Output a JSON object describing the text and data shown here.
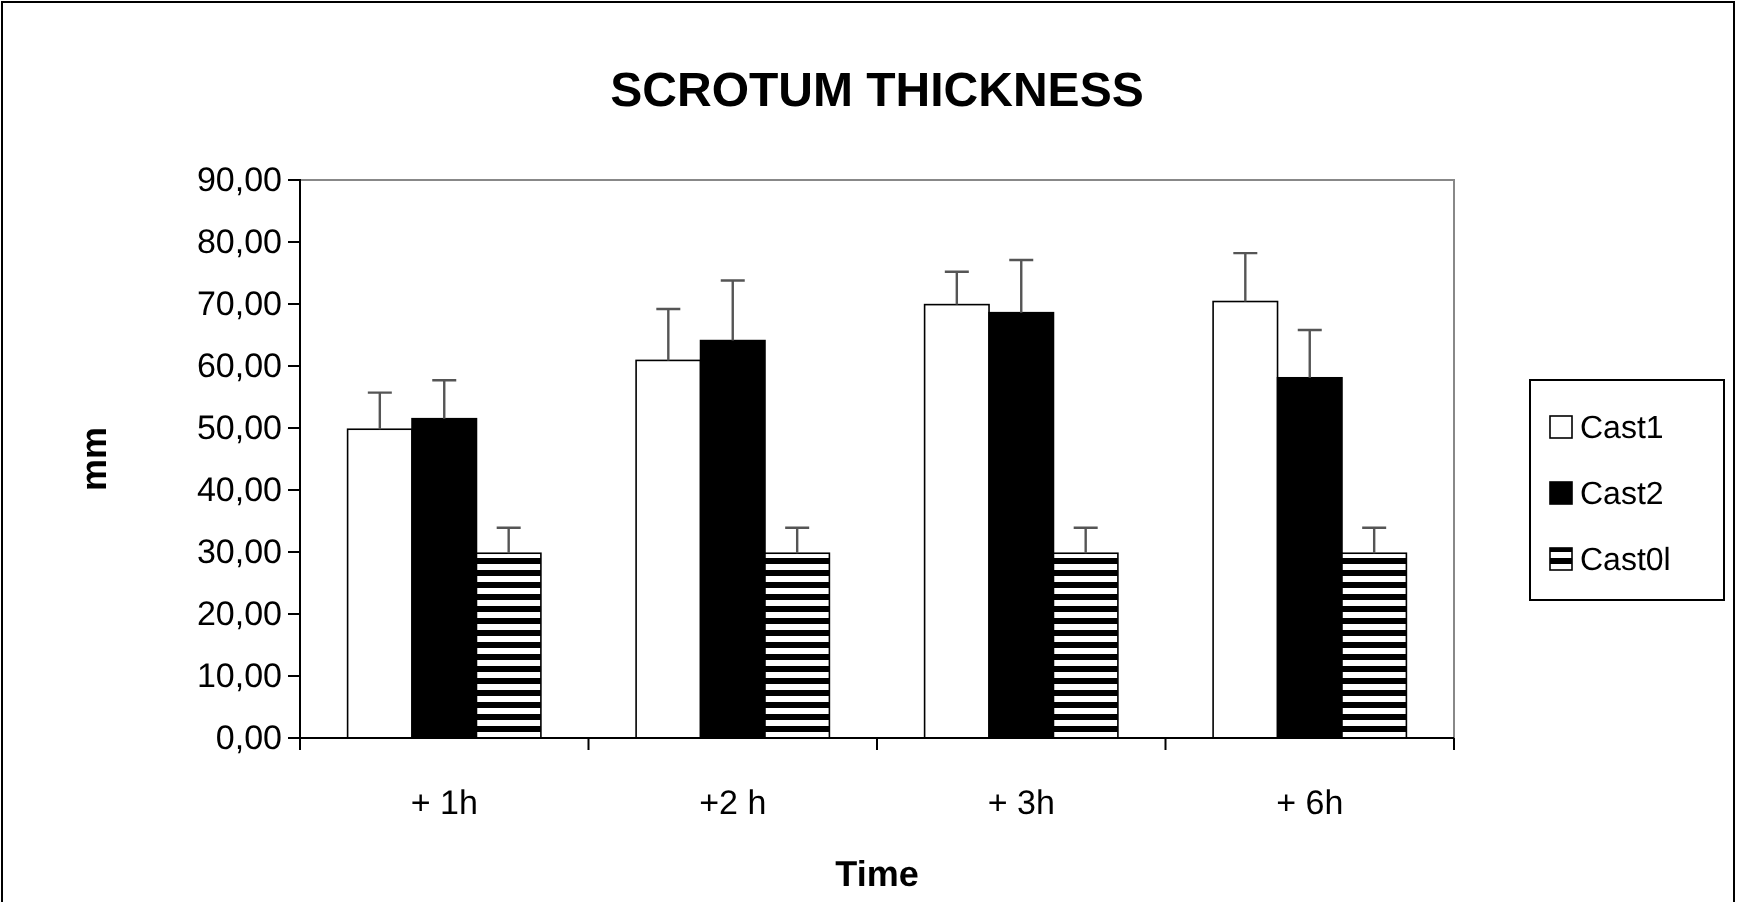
{
  "chart_data": {
    "type": "bar",
    "title": "SCROTUM THICKNESS",
    "xlabel": "Time",
    "ylabel": "mm",
    "categories": [
      "+ 1h",
      "+2 h",
      "+ 3h",
      "+ 6h"
    ],
    "series": [
      {
        "name": "Cast1",
        "color": "#ffffff",
        "values": [
          49.8,
          60.9,
          69.9,
          70.4
        ],
        "errors": [
          [
            49.8,
            55.7
          ],
          [
            60.9,
            69.2
          ],
          [
            69.9,
            75.2
          ],
          [
            70.4,
            78.2
          ]
        ]
      },
      {
        "name": "Cast2",
        "color": "#000000",
        "values": [
          51.5,
          64.1,
          68.6,
          58.1
        ],
        "errors": [
          [
            51.5,
            57.7
          ],
          [
            64.1,
            73.8
          ],
          [
            68.6,
            77.1
          ],
          [
            58.1,
            65.8
          ]
        ]
      },
      {
        "name": "Cast0l",
        "color": "#000000",
        "values": [
          29.8,
          29.8,
          29.8,
          29.8
        ],
        "errors": [
          [
            29.8,
            33.9
          ],
          [
            29.8,
            33.9
          ],
          [
            29.8,
            33.9
          ],
          [
            29.8,
            33.9
          ]
        ]
      }
    ],
    "ylim": [
      0,
      90
    ],
    "yticks": [
      {
        "value": 0,
        "label": "0,00"
      },
      {
        "value": 10,
        "label": "10,00"
      },
      {
        "value": 20,
        "label": "20,00"
      },
      {
        "value": 30,
        "label": "30,00"
      },
      {
        "value": 40,
        "label": "40,00"
      },
      {
        "value": 50,
        "label": "50,00"
      },
      {
        "value": 60,
        "label": "60,00"
      },
      {
        "value": 70,
        "label": "70,00"
      },
      {
        "value": 80,
        "label": "80,00"
      },
      {
        "value": 90,
        "label": "90,00"
      }
    ],
    "grid": false,
    "legend": "right"
  }
}
